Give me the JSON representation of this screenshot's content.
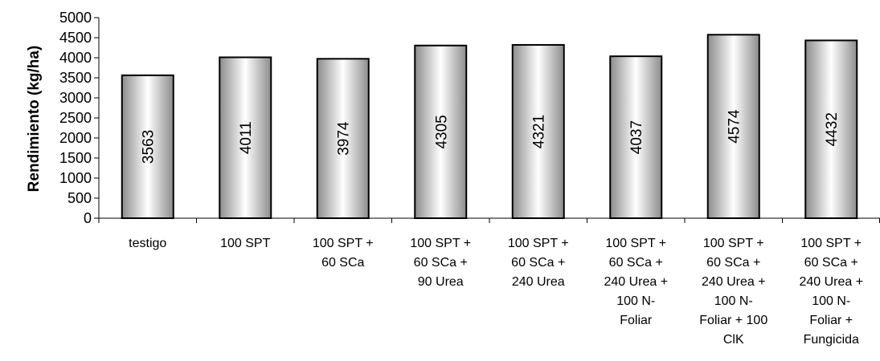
{
  "chart_data": {
    "type": "bar",
    "ylabel": "Rendimiento (kg/ha)",
    "xlabel": "",
    "ylim": [
      0,
      5000
    ],
    "yticks": [
      0,
      500,
      1000,
      1500,
      2000,
      2500,
      3000,
      3500,
      4000,
      4500,
      5000
    ],
    "grid": false,
    "categories": [
      [
        "testigo"
      ],
      [
        "100 SPT"
      ],
      [
        "100 SPT +",
        "60 SCa"
      ],
      [
        "100 SPT +",
        "60 SCa +",
        "90 Urea"
      ],
      [
        "100 SPT +",
        "60 SCa +",
        "240 Urea"
      ],
      [
        "100 SPT +",
        "60 SCa +",
        "240 Urea +",
        "100 N-",
        "Foliar"
      ],
      [
        "100 SPT +",
        "60 SCa +",
        "240 Urea +",
        "100 N-",
        "Foliar + 100",
        "ClK"
      ],
      [
        "100 SPT +",
        "60 SCa +",
        "240 Urea +",
        "100 N-",
        "Foliar +",
        "Fungicida"
      ]
    ],
    "values": [
      3563,
      4011,
      3974,
      4305,
      4321,
      4037,
      4574,
      4432
    ],
    "data_labels": [
      "3563",
      "4011",
      "3974",
      "4305",
      "4321",
      "4037",
      "4574",
      "4432"
    ],
    "colors": {
      "bar_dark": "#8c8c8c",
      "bar_light": "#ffffff",
      "stroke": "#000000"
    }
  }
}
